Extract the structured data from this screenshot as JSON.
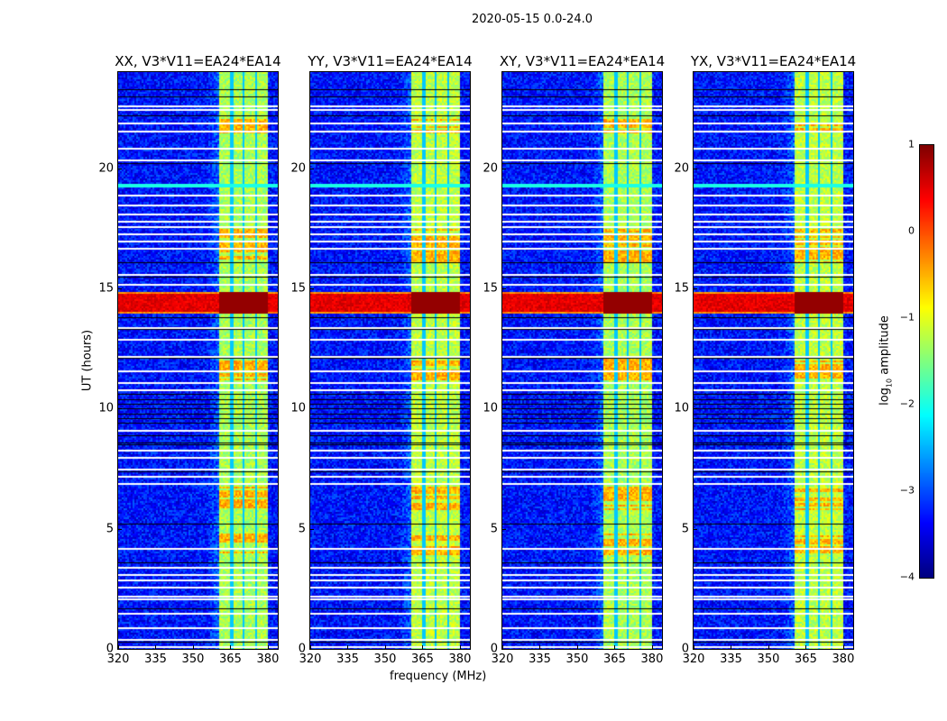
{
  "figure": {
    "suptitle": "2020-05-15 0.0-24.0",
    "xlabel": "frequency (MHz)",
    "ylabel": "UT (hours)"
  },
  "chart_data": {
    "type": "heatmap",
    "panels": [
      {
        "title": "XX, V3*V11=EA24*EA14"
      },
      {
        "title": "YY, V3*V11=EA24*EA14"
      },
      {
        "title": "XY, V3*V11=EA24*EA14"
      },
      {
        "title": "YX, V3*V11=EA24*EA14"
      }
    ],
    "xlim": [
      320,
      384
    ],
    "ylim": [
      0,
      24
    ],
    "xticks": [
      "320",
      "335",
      "350",
      "365",
      "380"
    ],
    "xtick_values": [
      320,
      335,
      350,
      365,
      380
    ],
    "yticks": [
      "0",
      "5",
      "10",
      "15",
      "20"
    ],
    "ytick_values": [
      0,
      5,
      10,
      15,
      20
    ],
    "background_level": -3.3,
    "signal_band_mhz": [
      360,
      380
    ],
    "signal_subband_edges_mhz": [
      365,
      370,
      375
    ],
    "signal_band_level": -1.3,
    "strong_rfi_hours": [
      14.0,
      14.9
    ],
    "strong_rfi_level": 0.5,
    "bright_band_hours": [
      [
        21.5,
        22.1
      ],
      [
        16.1,
        17.5
      ],
      [
        11.2,
        12.2
      ],
      [
        5.8,
        6.8
      ],
      [
        3.9,
        4.8
      ]
    ],
    "flagged_white_hours": [
      22.6,
      22.45,
      21.9,
      21.55,
      20.85,
      20.35,
      18.9,
      18.5,
      18.1,
      17.8,
      17.6,
      17.3,
      17.0,
      16.7,
      15.6,
      15.2,
      13.4,
      12.9,
      12.2,
      11.6,
      11.1,
      10.8,
      9.1,
      8.3,
      8.0,
      7.5,
      7.2,
      6.9,
      4.2,
      3.4,
      3.1,
      2.9,
      2.6,
      2.2,
      2.1,
      1.5,
      0.9,
      0.4,
      0.1
    ],
    "flagged_black_hours": [
      23.3,
      23.0,
      22.2,
      20.2,
      16.1,
      15.5,
      13.8,
      13.3,
      12.1,
      10.6,
      10.4,
      10.2,
      10.0,
      9.8,
      9.6,
      9.4,
      8.9,
      8.6,
      8.5,
      7.4,
      5.2,
      3.6,
      1.7,
      0.3
    ],
    "colorbar": {
      "label": "log10 amplitude",
      "label_main": "log",
      "label_sub": "10",
      "label_rest": " amplitude",
      "range": [
        -4,
        1
      ],
      "ticks": [
        "1",
        "0",
        "−1",
        "−2",
        "−3",
        "−4"
      ],
      "tick_values": [
        1,
        0,
        -1,
        -2,
        -3,
        -4
      ],
      "colormap": "jet"
    }
  }
}
